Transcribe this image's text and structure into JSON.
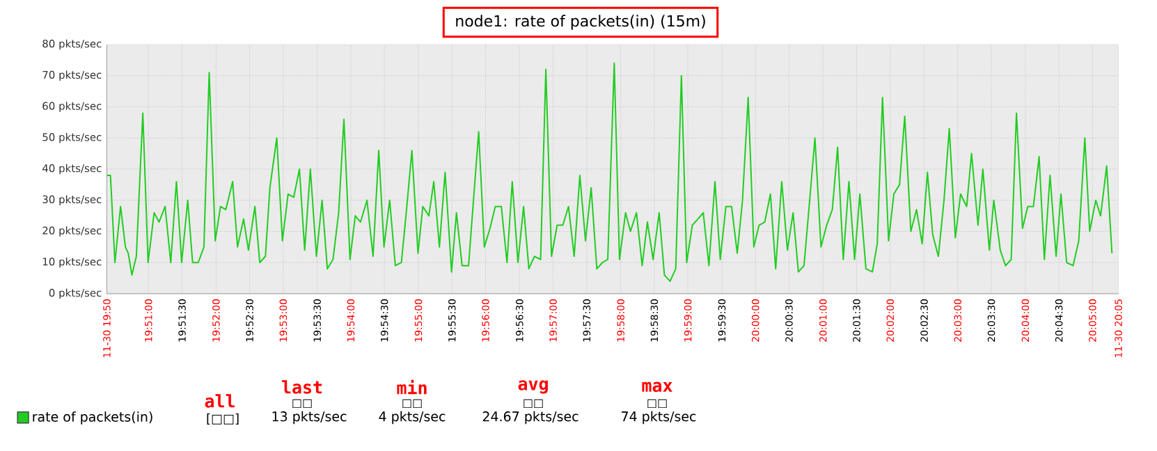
{
  "chart_data": {
    "type": "line",
    "title": "node1: rate of packets(in) (15m)",
    "x": [
      19.8397,
      19.8406,
      19.8417,
      19.8431,
      19.8443,
      19.845,
      19.8459,
      19.847,
      19.8486,
      19.8499,
      19.8514,
      19.8526,
      19.8541,
      19.8555,
      19.8569,
      19.8582,
      19.8597,
      19.8609,
      19.8623,
      19.8637,
      19.865,
      19.8665,
      19.8678,
      19.8691,
      19.8708,
      19.872,
      19.8735,
      19.8747,
      19.8763,
      19.8775,
      19.8789,
      19.88,
      19.8817,
      19.8831,
      19.8845,
      19.8859,
      19.8873,
      19.8886,
      19.89,
      19.8915,
      19.8929,
      19.8942,
      19.8956,
      19.897,
      19.8983,
      19.8998,
      19.9011,
      19.9024,
      19.904,
      19.9055,
      19.9069,
      19.9082,
      19.9096,
      19.911,
      19.9125,
      19.9137,
      19.9151,
      19.9166,
      19.9178,
      19.9193,
      19.9205,
      19.9219,
      19.9233,
      19.9249,
      19.9261,
      19.9275,
      19.9291,
      19.9302,
      19.9316,
      19.933,
      19.9344,
      19.9357,
      19.9372,
      19.9386,
      19.9399,
      19.9413,
      19.9427,
      19.944,
      19.9454,
      19.9469,
      19.9482,
      19.9496,
      19.951,
      19.9524,
      19.9538,
      19.9552,
      19.9566,
      19.958,
      19.9594,
      19.9608,
      19.9622,
      19.9635,
      19.9651,
      19.9664,
      19.9679,
      19.9691,
      19.9706,
      19.972,
      19.9733,
      19.9747,
      19.9762,
      19.9775,
      19.9789,
      19.9803,
      19.9817,
      19.983,
      19.9844,
      19.9858,
      19.9871,
      19.9885,
      19.99,
      19.9913,
      19.9927,
      19.9941,
      19.9955,
      19.9968,
      19.9982,
      19.9996,
      20.0009,
      20.0023,
      20.0037,
      20.005,
      20.0065,
      20.0079,
      20.0093,
      20.0106,
      20.012,
      20.0134,
      20.0147,
      20.0162,
      20.0176,
      20.019,
      20.0203,
      20.0217,
      20.0231,
      20.0245,
      20.0258,
      20.0273,
      20.0289,
      20.0301,
      20.0314,
      20.0329,
      20.0342,
      20.0356,
      20.0369,
      20.0384,
      20.0398,
      20.0412,
      20.0425,
      20.0438,
      20.0452,
      20.0466,
      20.0479,
      20.0494,
      20.0507,
      20.0522,
      20.0534,
      20.055,
      20.0562,
      20.0578,
      20.0589,
      20.0605,
      20.0618,
      20.0632,
      20.0645,
      20.066,
      20.0673,
      20.0687,
      20.0701,
      20.0714,
      20.0728,
      20.0743,
      20.0755,
      20.0769,
      20.0785,
      20.0799,
      20.0814,
      20.0826,
      20.0841,
      20.0853,
      20.0868,
      20.0881
    ],
    "series": [
      {
        "name": "rate of packets(in)",
        "color": "#22cc22",
        "values": [
          38,
          38,
          10,
          28,
          15,
          13,
          6,
          12,
          58,
          10,
          26,
          23,
          28,
          10,
          36,
          10,
          30,
          10,
          10,
          15,
          71,
          17,
          28,
          27,
          36,
          15,
          24,
          14,
          28,
          10,
          12,
          34,
          50,
          17,
          32,
          31,
          40,
          14,
          40,
          12,
          30,
          8,
          11,
          26,
          56,
          11,
          25,
          23,
          30,
          12,
          46,
          15,
          30,
          9,
          10,
          26,
          46,
          13,
          28,
          25,
          36,
          15,
          39,
          7,
          26,
          9,
          9,
          28,
          52,
          15,
          21,
          28,
          28,
          10,
          36,
          10,
          28,
          8,
          12,
          11,
          72,
          12,
          22,
          22,
          28,
          12,
          38,
          17,
          34,
          8,
          10,
          11,
          74,
          11,
          26,
          20,
          26,
          9,
          23,
          11,
          26,
          6,
          4,
          8,
          70,
          10,
          22,
          24,
          26,
          9,
          36,
          11,
          28,
          28,
          13,
          30,
          63,
          15,
          22,
          23,
          32,
          8,
          36,
          14,
          26,
          7,
          9,
          30,
          50,
          15,
          22,
          27,
          47,
          11,
          36,
          11,
          32,
          8,
          7,
          16,
          63,
          17,
          32,
          35,
          57,
          20,
          27,
          16,
          39,
          19,
          12,
          30,
          53,
          18,
          32,
          28,
          45,
          22,
          40,
          14,
          30,
          14,
          9,
          11,
          58,
          21,
          28,
          28,
          44,
          11,
          38,
          12,
          32,
          10,
          9,
          17,
          50,
          20,
          30,
          25,
          41,
          13
        ]
      }
    ],
    "xlim": [
      19.8397,
      20.0897
    ],
    "xticks": [
      {
        "value": 19.8397,
        "label": "11-30 19:50"
      },
      {
        "value": 19.85,
        "label": "19:51:00"
      },
      {
        "value": 19.8583,
        "label": "19:51:30"
      },
      {
        "value": 19.8667,
        "label": "19:52:00"
      },
      {
        "value": 19.875,
        "label": "19:52:30"
      },
      {
        "value": 19.8833,
        "label": "19:53:00"
      },
      {
        "value": 19.8917,
        "label": "19:53:30"
      },
      {
        "value": 19.9,
        "label": "19:54:00"
      },
      {
        "value": 19.9083,
        "label": "19:54:30"
      },
      {
        "value": 19.9167,
        "label": "19:55:00"
      },
      {
        "value": 19.925,
        "label": "19:55:30"
      },
      {
        "value": 19.9333,
        "label": "19:56:00"
      },
      {
        "value": 19.9417,
        "label": "19:56:30"
      },
      {
        "value": 19.95,
        "label": "19:57:00"
      },
      {
        "value": 19.9583,
        "label": "19:57:30"
      },
      {
        "value": 19.9667,
        "label": "19:58:00"
      },
      {
        "value": 19.975,
        "label": "19:58:30"
      },
      {
        "value": 19.9833,
        "label": "19:59:00"
      },
      {
        "value": 19.9917,
        "label": "19:59:30"
      },
      {
        "value": 20,
        "label": "20:00:00"
      },
      {
        "value": 20.0083,
        "label": "20:00:30"
      },
      {
        "value": 20.0167,
        "label": "20:01:00"
      },
      {
        "value": 20.025,
        "label": "20:01:30"
      },
      {
        "value": 20.0333,
        "label": "20:02:00"
      },
      {
        "value": 20.0417,
        "label": "20:02:30"
      },
      {
        "value": 20.05,
        "label": "20:03:00"
      },
      {
        "value": 20.0583,
        "label": "20:03:30"
      },
      {
        "value": 20.0667,
        "label": "20:04:00"
      },
      {
        "value": 20.075,
        "label": "20:04:30"
      },
      {
        "value": 20.0833,
        "label": "20:05:00"
      },
      {
        "value": 20.0897,
        "label": "11-30 20:05"
      }
    ],
    "ylim": [
      0,
      80
    ],
    "yticks": [
      {
        "value": 0,
        "label": "0 pkts/sec"
      },
      {
        "value": 10,
        "label": "10 pkts/sec"
      },
      {
        "value": 20,
        "label": "20 pkts/sec"
      },
      {
        "value": 30,
        "label": "30 pkts/sec"
      },
      {
        "value": 40,
        "label": "40 pkts/sec"
      },
      {
        "value": 50,
        "label": "50 pkts/sec"
      },
      {
        "value": 60,
        "label": "60 pkts/sec"
      },
      {
        "value": 70,
        "label": "70 pkts/sec"
      },
      {
        "value": 80,
        "label": "80 pkts/sec"
      }
    ],
    "grid": true,
    "legend": "bottom",
    "marker": "none",
    "line_style": "solid",
    "annotations": [
      "all",
      "[□□]",
      "last",
      "□□",
      "13 pkts/sec",
      "min",
      "□□",
      "4 pkts/sec",
      "avg",
      "□□",
      "24.67 pkts/sec",
      "max",
      "□□",
      "74 pkts/sec"
    ]
  }
}
